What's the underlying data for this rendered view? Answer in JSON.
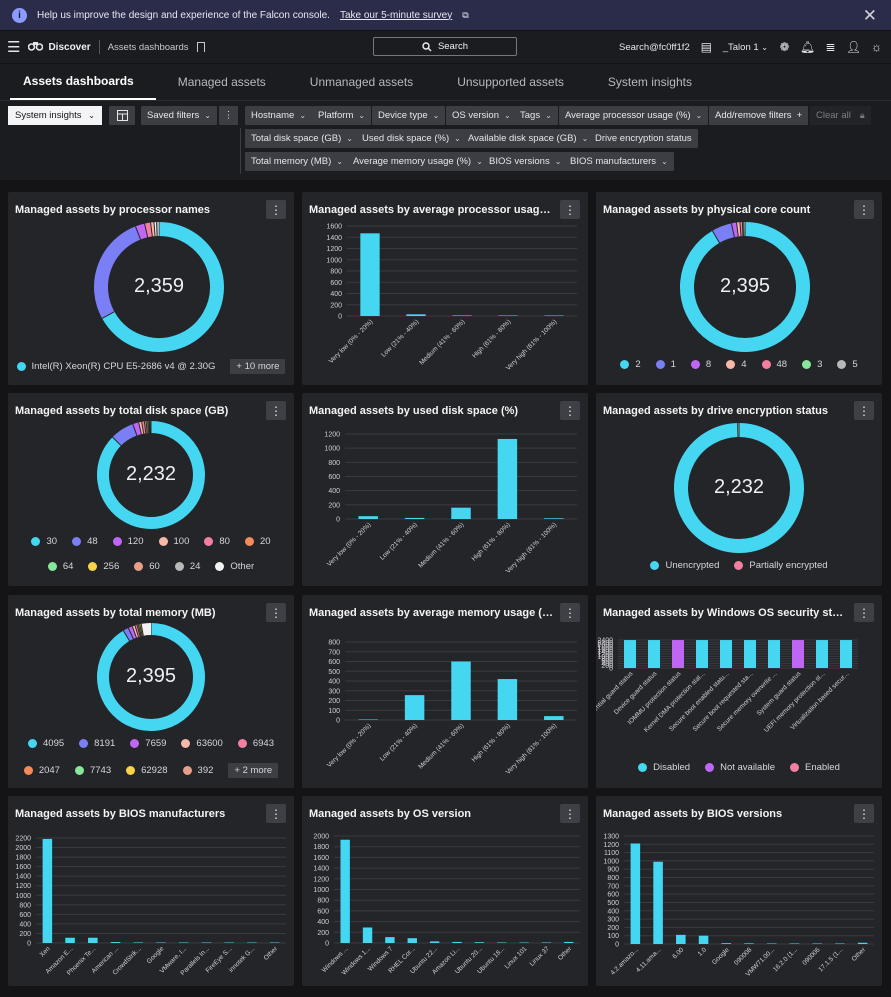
{
  "banner": {
    "info_icon": "info-icon",
    "text": "Help us improve the design and experience of the Falcon console.",
    "link": "Take our 5-minute survey",
    "close_icon": "close-icon"
  },
  "topbar": {
    "app_name": "Discover",
    "breadcrumb": "Assets dashboards",
    "search_label": "Search",
    "user": "Search@fc0ff1f2",
    "org": "_Talon 1"
  },
  "tabs": [
    "Assets dashboards",
    "Managed assets",
    "Unmanaged assets",
    "Unsupported assets",
    "System insights"
  ],
  "filters": {
    "system_dropdown": "System insights",
    "saved_filters": "Saved filters",
    "row1": [
      "Hostname",
      "Platform",
      "Device type",
      "OS version",
      "Tags",
      "Average processor usage (%)"
    ],
    "add_remove": "Add/remove filters",
    "clear_all": "Clear all",
    "row2": [
      "Total disk space (GB)",
      "Used disk space (%)",
      "Available disk space (GB)",
      "Drive encryption status"
    ],
    "row3": [
      "Total memory (MB)",
      "Average memory usage (%)",
      "BIOS versions",
      "BIOS manufacturers"
    ]
  },
  "colors": {
    "cyan": "#45d6f2",
    "purple": "#7b7ff5",
    "violet": "#c066f5",
    "pink": "#f37fa0",
    "peach": "#f8b8a8",
    "green": "#86e79b",
    "gray": "#b8b8b8",
    "orange": "#f4895a",
    "yellow": "#f8d34a",
    "white": "#f2f2f2",
    "brown": "#e6a08a"
  },
  "panels": [
    {
      "title": "Managed assets by processor names",
      "chart_data": {
        "type": "pie",
        "total": "2,359",
        "slices": [
          {
            "label": "Intel(R) Xeon(R) CPU E5-2686 v4 @ 2.30GHz",
            "value": 1580,
            "color": "#45d6f2"
          },
          {
            "label": "",
            "value": 640,
            "color": "#7b7ff5"
          },
          {
            "label": "",
            "value": 55,
            "color": "#c066f5"
          },
          {
            "label": "",
            "value": 35,
            "color": "#f37fa0"
          },
          {
            "label": "",
            "value": 20,
            "color": "#f8b8a8"
          },
          {
            "label": "",
            "value": 15,
            "color": "#f2f2f2"
          },
          {
            "label": "",
            "value": 14,
            "color": "#b8b8b8"
          }
        ]
      },
      "legend": [
        {
          "label": "Intel(R) Xeon(R) CPU E5-2686 v4 @ 2.30G",
          "color": "#45d6f2"
        }
      ],
      "more": "+ 10 more"
    },
    {
      "title": "Managed assets by average processor usage (%)",
      "chart_data": {
        "type": "bar",
        "yticks": [
          0,
          200,
          400,
          600,
          800,
          1000,
          1200,
          1400,
          1600
        ],
        "ymax": 1600,
        "categories": [
          "Very low (0% - 20%)",
          "Low (21% - 40%)",
          "Medium (41% - 60%)",
          "High (61% - 80%)",
          "Very high (81% - 100%)"
        ],
        "values": [
          1470,
          30,
          10,
          0,
          0
        ]
      }
    },
    {
      "title": "Managed assets by physical core count",
      "chart_data": {
        "type": "pie",
        "total": "2,395",
        "slices": [
          {
            "label": "2",
            "value": 2195,
            "color": "#45d6f2"
          },
          {
            "label": "1",
            "value": 120,
            "color": "#7b7ff5"
          },
          {
            "label": "8",
            "value": 30,
            "color": "#c066f5"
          },
          {
            "label": "4",
            "value": 20,
            "color": "#f8b8a8"
          },
          {
            "label": "48",
            "value": 15,
            "color": "#f37fa0"
          },
          {
            "label": "3",
            "value": 8,
            "color": "#86e79b"
          },
          {
            "label": "5",
            "value": 7,
            "color": "#b8b8b8"
          }
        ]
      },
      "legend": [
        {
          "label": "2",
          "color": "#45d6f2"
        },
        {
          "label": "1",
          "color": "#7b7ff5"
        },
        {
          "label": "8",
          "color": "#c066f5"
        },
        {
          "label": "4",
          "color": "#f8b8a8"
        },
        {
          "label": "48",
          "color": "#f37fa0"
        },
        {
          "label": "3",
          "color": "#86e79b"
        },
        {
          "label": "5",
          "color": "#b8b8b8"
        }
      ]
    },
    {
      "title": "Managed assets by total disk space (GB)",
      "chart_data": {
        "type": "pie",
        "total": "2,232",
        "slices": [
          {
            "label": "30",
            "value": 1950,
            "color": "#45d6f2"
          },
          {
            "label": "48",
            "value": 160,
            "color": "#7b7ff5"
          },
          {
            "label": "120",
            "value": 40,
            "color": "#c066f5"
          },
          {
            "label": "100",
            "value": 20,
            "color": "#f8b8a8"
          },
          {
            "label": "80",
            "value": 18,
            "color": "#f37fa0"
          },
          {
            "label": "20",
            "value": 12,
            "color": "#f4895a"
          },
          {
            "label": "64",
            "value": 10,
            "color": "#86e79b"
          },
          {
            "label": "256",
            "value": 8,
            "color": "#f8d34a"
          },
          {
            "label": "60",
            "value": 6,
            "color": "#e6a08a"
          },
          {
            "label": "24",
            "value": 4,
            "color": "#b8b8b8"
          },
          {
            "label": "Other",
            "value": 4,
            "color": "#f2f2f2"
          }
        ]
      },
      "legend": [
        {
          "label": "30",
          "color": "#45d6f2"
        },
        {
          "label": "48",
          "color": "#7b7ff5"
        },
        {
          "label": "120",
          "color": "#c066f5"
        },
        {
          "label": "100",
          "color": "#f8b8a8"
        },
        {
          "label": "80",
          "color": "#f37fa0"
        },
        {
          "label": "20",
          "color": "#f4895a"
        }
      ],
      "legend2": [
        {
          "label": "64",
          "color": "#86e79b"
        },
        {
          "label": "256",
          "color": "#f8d34a"
        },
        {
          "label": "60",
          "color": "#e6a08a"
        },
        {
          "label": "24",
          "color": "#b8b8b8"
        },
        {
          "label": "Other",
          "color": "#f2f2f2"
        }
      ]
    },
    {
      "title": "Managed assets by used disk space (%)",
      "chart_data": {
        "type": "bar",
        "yticks": [
          0,
          200,
          400,
          600,
          800,
          1000,
          1200
        ],
        "ymax": 1200,
        "categories": [
          "Very low (0% - 20%)",
          "Low (21% - 40%)",
          "Medium (41% - 60%)",
          "High (61% - 80%)",
          "Very high (81% - 100%)"
        ],
        "values": [
          40,
          15,
          160,
          1130,
          10
        ]
      }
    },
    {
      "title": "Managed assets by drive encryption status",
      "chart_data": {
        "type": "pie",
        "total": "2,232",
        "slices": [
          {
            "label": "Unencrypted",
            "value": 2225,
            "color": "#45d6f2"
          },
          {
            "label": "Partially encrypted",
            "value": 7,
            "color": "#8a8a8a"
          }
        ]
      },
      "legend": [
        {
          "label": "Unencrypted",
          "color": "#45d6f2"
        },
        {
          "label": "Partially encrypted",
          "color": "#f37fa0"
        }
      ]
    },
    {
      "title": "Managed assets by total memory (MB)",
      "chart_data": {
        "type": "pie",
        "total": "2,395",
        "slices": [
          {
            "label": "4095",
            "value": 2190,
            "color": "#45d6f2"
          },
          {
            "label": "8191",
            "value": 40,
            "color": "#7b7ff5"
          },
          {
            "label": "7659",
            "value": 30,
            "color": "#c066f5"
          },
          {
            "label": "63600",
            "value": 20,
            "color": "#f8b8a8"
          },
          {
            "label": "6943",
            "value": 15,
            "color": "#f37fa0"
          },
          {
            "label": "2047",
            "value": 10,
            "color": "#f4895a"
          },
          {
            "label": "7743",
            "value": 10,
            "color": "#86e79b"
          },
          {
            "label": "62928",
            "value": 10,
            "color": "#f8d34a"
          },
          {
            "label": "392",
            "value": 70,
            "color": "#f2f2f2"
          }
        ]
      },
      "legend": [
        {
          "label": "4095",
          "color": "#45d6f2"
        },
        {
          "label": "8191",
          "color": "#7b7ff5"
        },
        {
          "label": "7659",
          "color": "#c066f5"
        },
        {
          "label": "63600",
          "color": "#f8b8a8"
        },
        {
          "label": "6943",
          "color": "#f37fa0"
        }
      ],
      "legend2": [
        {
          "label": "2047",
          "color": "#f4895a"
        },
        {
          "label": "7743",
          "color": "#86e79b"
        },
        {
          "label": "62928",
          "color": "#f8d34a"
        },
        {
          "label": "392",
          "color": "#e6a08a"
        }
      ],
      "more": "+ 2 more"
    },
    {
      "title": "Managed assets by average memory usage (%)",
      "chart_data": {
        "type": "bar",
        "yticks": [
          0,
          100,
          200,
          300,
          400,
          500,
          600,
          700,
          800
        ],
        "ymax": 800,
        "categories": [
          "Very low (0% - 20%)",
          "Low (21% - 40%)",
          "Medium (41% - 60%)",
          "High (61% - 80%)",
          "Very high (81% - 100%)"
        ],
        "values": [
          5,
          255,
          600,
          420,
          40
        ]
      }
    },
    {
      "title": "Managed assets by Windows OS security status",
      "chart_data": {
        "type": "bar",
        "yticks": [
          0,
          200,
          400,
          600,
          800,
          1000,
          1200,
          1400,
          1600,
          1800,
          2000,
          2200,
          2400
        ],
        "ymax": 2400,
        "categories": [
          "Credential guard status",
          "Device guard status",
          "IOMMU protection status",
          "Kernel DMA protection stat...",
          "Secure boot enabled statu...",
          "Secure boot requested sta...",
          "Secure memory overwrite ...",
          "System guard status",
          "UEFI memory protection st...",
          "Virtualization based secur..."
        ],
        "values": [
          2395,
          2395,
          2395,
          2395,
          2395,
          2395,
          2395,
          2395,
          2395,
          2395
        ],
        "colors": [
          "#45d6f2",
          "#45d6f2",
          "#c066f5",
          "#45d6f2",
          "#45d6f2",
          "#45d6f2",
          "#45d6f2",
          "#c066f5",
          "#45d6f2",
          "#45d6f2"
        ]
      },
      "legend": [
        {
          "label": "Disabled",
          "color": "#45d6f2"
        },
        {
          "label": "Not available",
          "color": "#c066f5"
        },
        {
          "label": "Enabled",
          "color": "#f37fa0"
        }
      ]
    },
    {
      "title": "Managed assets by BIOS manufacturers",
      "chart_data": {
        "type": "bar",
        "yticks": [
          0,
          200,
          400,
          600,
          800,
          1000,
          1200,
          1400,
          1600,
          1800,
          2000,
          2200
        ],
        "ymax": 2200,
        "categories": [
          "Xen",
          "Amazon E...",
          "Phoenix Te...",
          "American ...",
          "CrowdStrik...",
          "Google",
          "VMware, I...",
          "Parallels In...",
          "FireEye S...",
          "innotek G...",
          "Other"
        ],
        "values": [
          2180,
          110,
          110,
          20,
          12,
          8,
          5,
          4,
          3,
          3,
          10
        ]
      }
    },
    {
      "title": "Managed assets by OS version",
      "chart_data": {
        "type": "bar",
        "yticks": [
          0,
          200,
          400,
          600,
          800,
          1000,
          1200,
          1400,
          1600,
          1800,
          2000
        ],
        "ymax": 2000,
        "categories": [
          "Windows ...",
          "Windows 1...",
          "Windows 7",
          "RHEL Cor...",
          "Ubuntu 22...",
          "Amazon Li...",
          "Ubuntu 20...",
          "Ubuntu 18...",
          "Linux 101",
          "Linux 37",
          "Other"
        ],
        "values": [
          1930,
          290,
          110,
          90,
          30,
          20,
          15,
          10,
          5,
          5,
          20
        ]
      }
    },
    {
      "title": "Managed assets by BIOS versions",
      "chart_data": {
        "type": "bar",
        "yticks": [
          0,
          100,
          200,
          300,
          400,
          500,
          600,
          700,
          800,
          900,
          1000,
          1100,
          1200,
          1300
        ],
        "ymax": 1300,
        "categories": [
          "4.2.amazo...",
          "4.11.ama...",
          "6.00",
          "1.0",
          "Google",
          "090008",
          "VMW71.00...",
          "16.2.0 (1...",
          "090006",
          "17.1.5 (1...",
          "Other"
        ],
        "values": [
          1210,
          990,
          110,
          100,
          10,
          8,
          6,
          5,
          4,
          3,
          15
        ]
      }
    }
  ]
}
